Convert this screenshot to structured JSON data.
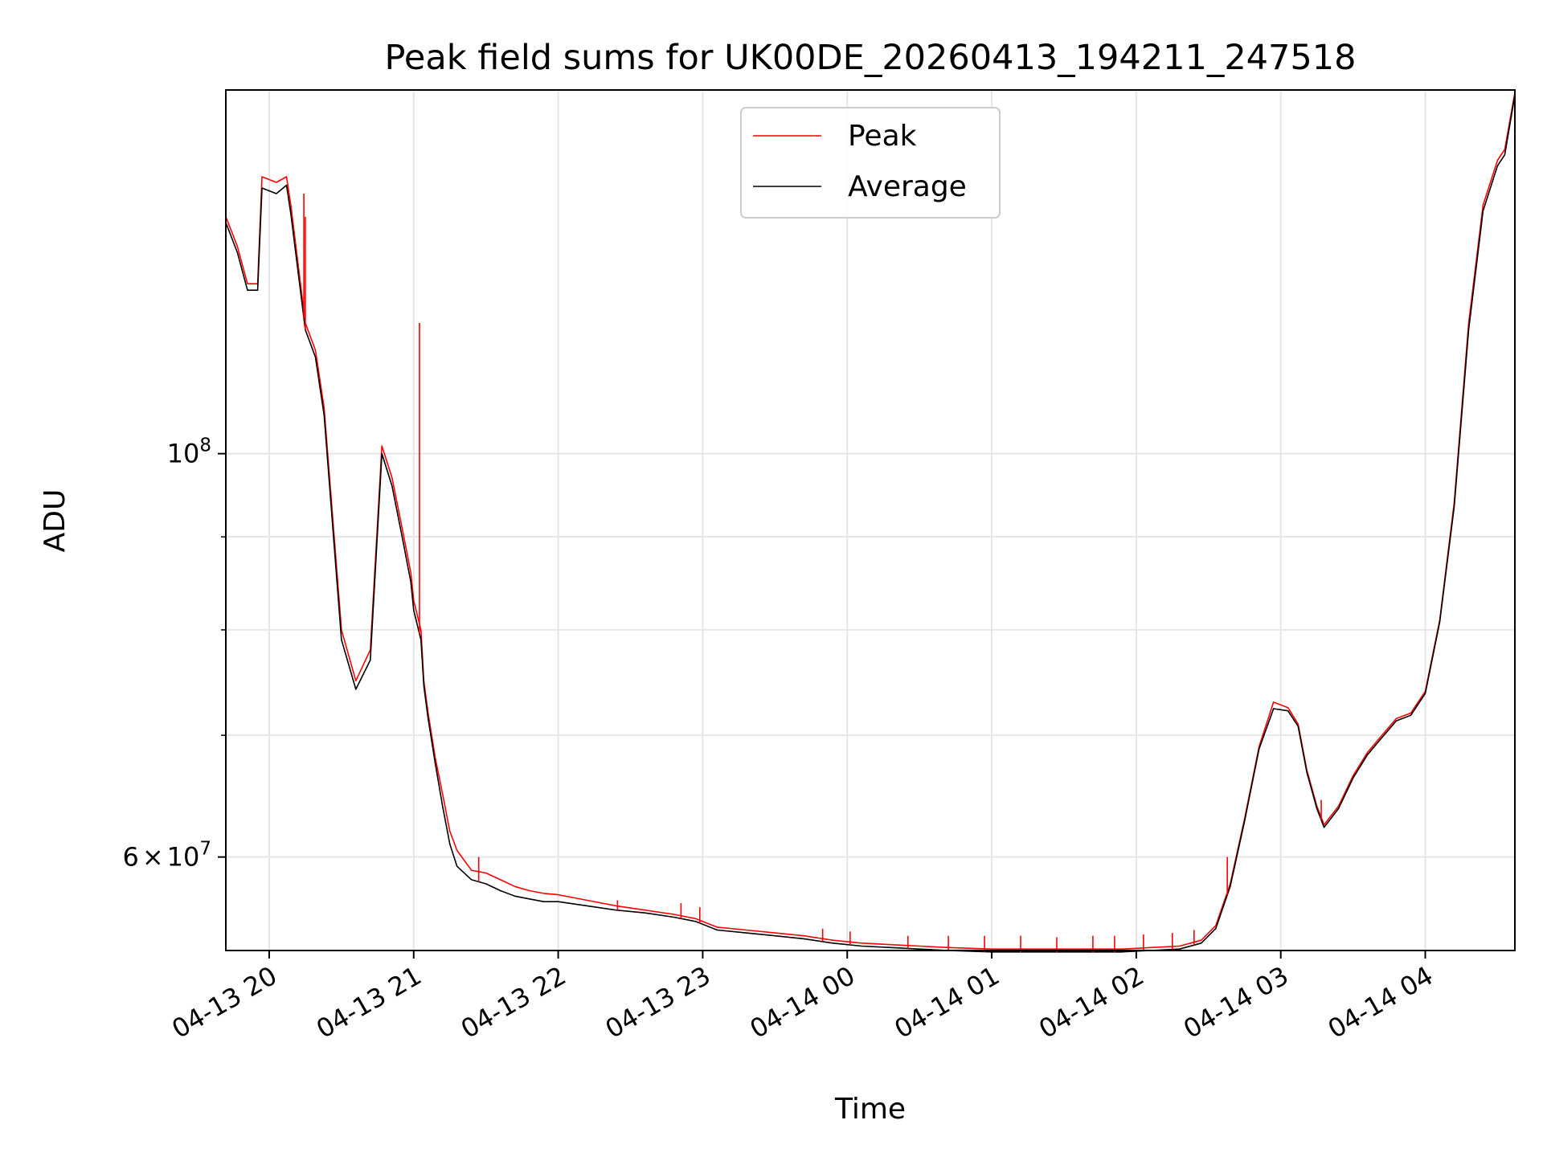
{
  "chart_data": {
    "type": "line",
    "title": "Peak field sums for UK00DE_20260413_194211_247518",
    "xlabel": "Time",
    "ylabel": "ADU",
    "yscale": "log",
    "x_unit": "hours since 2026-04-13 19:00",
    "xlim": [
      19.7,
      28.62
    ],
    "ylim": [
      53300000,
      158500000
    ],
    "grid": true,
    "legend_position": "upper center",
    "x_ticks": [
      {
        "value": 20,
        "label": "04-13 20"
      },
      {
        "value": 21,
        "label": "04-13 21"
      },
      {
        "value": 22,
        "label": "04-13 22"
      },
      {
        "value": 23,
        "label": "04-13 23"
      },
      {
        "value": 24,
        "label": "04-14 00"
      },
      {
        "value": 25,
        "label": "04-14 01"
      },
      {
        "value": 26,
        "label": "04-14 02"
      },
      {
        "value": 27,
        "label": "04-14 03"
      },
      {
        "value": 28,
        "label": "04-14 04"
      }
    ],
    "y_major_ticks": [
      {
        "value": 100000000,
        "base": "10",
        "exp": "8"
      },
      {
        "value": 60000000,
        "coef": "6",
        "times": "×",
        "base": "10",
        "exp": "7"
      }
    ],
    "y_minor_ticks": [
      70000000,
      80000000,
      90000000
    ],
    "series": [
      {
        "name": "Peak",
        "color": "#ff0000",
        "x": [
          19.7,
          19.78,
          19.85,
          19.92,
          19.95,
          20.05,
          20.12,
          20.15,
          20.25,
          20.32,
          20.38,
          20.5,
          20.6,
          20.7,
          20.78,
          20.85,
          20.92,
          20.98,
          21.0,
          21.05,
          21.07,
          21.1,
          21.15,
          21.2,
          21.25,
          21.3,
          21.4,
          21.5,
          21.6,
          21.7,
          21.8,
          21.9,
          22.0,
          22.2,
          22.4,
          22.6,
          22.8,
          22.95,
          23.1,
          23.3,
          23.5,
          23.7,
          23.9,
          24.1,
          24.3,
          24.5,
          24.7,
          25.0,
          25.3,
          25.6,
          25.9,
          26.1,
          26.3,
          26.45,
          26.55,
          26.65,
          26.75,
          26.85,
          26.95,
          27.05,
          27.12,
          27.18,
          27.25,
          27.3,
          27.4,
          27.5,
          27.6,
          27.7,
          27.8,
          27.9,
          28.0,
          28.1,
          28.2,
          28.3,
          28.4,
          28.5,
          28.55,
          28.62
        ],
        "values": [
          135000000,
          130000000,
          124000000,
          124000000,
          142000000,
          141000000,
          142000000,
          137000000,
          118000000,
          114000000,
          106000000,
          80000000,
          75000000,
          78000000,
          101000000,
          97000000,
          91000000,
          86000000,
          83000000,
          80000000,
          75000000,
          72000000,
          68000000,
          65000000,
          62000000,
          60500000,
          59000000,
          58800000,
          58300000,
          57800000,
          57500000,
          57300000,
          57200000,
          56800000,
          56400000,
          56100000,
          55800000,
          55500000,
          54900000,
          54700000,
          54500000,
          54300000,
          54000000,
          53800000,
          53700000,
          53600000,
          53500000,
          53400000,
          53400000,
          53400000,
          53400000,
          53500000,
          53600000,
          54000000,
          55000000,
          58000000,
          63000000,
          69000000,
          73000000,
          72500000,
          71000000,
          67000000,
          64000000,
          62500000,
          64000000,
          66500000,
          68500000,
          70000000,
          71500000,
          72000000,
          74000000,
          81000000,
          94000000,
          118000000,
          137000000,
          145000000,
          147000000,
          158000000
        ]
      },
      {
        "name": "Average",
        "color": "#000000",
        "x": [
          19.7,
          19.78,
          19.85,
          19.92,
          19.95,
          20.05,
          20.12,
          20.15,
          20.25,
          20.32,
          20.38,
          20.5,
          20.6,
          20.7,
          20.78,
          20.85,
          20.92,
          20.98,
          21.0,
          21.05,
          21.07,
          21.1,
          21.15,
          21.2,
          21.25,
          21.3,
          21.4,
          21.5,
          21.6,
          21.7,
          21.8,
          21.9,
          22.0,
          22.2,
          22.4,
          22.6,
          22.8,
          22.95,
          23.1,
          23.3,
          23.5,
          23.7,
          23.9,
          24.1,
          24.3,
          24.5,
          24.7,
          25.0,
          25.3,
          25.6,
          25.9,
          26.1,
          26.3,
          26.45,
          26.55,
          26.65,
          26.75,
          26.85,
          26.95,
          27.05,
          27.12,
          27.18,
          27.25,
          27.3,
          27.4,
          27.5,
          27.6,
          27.7,
          27.8,
          27.9,
          28.0,
          28.1,
          28.2,
          28.3,
          28.4,
          28.5,
          28.55,
          28.62
        ],
        "values": [
          134000000,
          129000000,
          123000000,
          123000000,
          140000000,
          139000000,
          140500000,
          135500000,
          117000000,
          113000000,
          105000000,
          79000000,
          74200000,
          77000000,
          100000000,
          96000000,
          90000000,
          85000000,
          82000000,
          79000000,
          74500000,
          71500000,
          67500000,
          64000000,
          61000000,
          59300000,
          58300000,
          58000000,
          57500000,
          57100000,
          56900000,
          56700000,
          56700000,
          56400000,
          56100000,
          55900000,
          55600000,
          55300000,
          54700000,
          54500000,
          54300000,
          54100000,
          53800000,
          53600000,
          53500000,
          53400000,
          53300000,
          53200000,
          53200000,
          53200000,
          53200000,
          53300000,
          53400000,
          53800000,
          54800000,
          57800000,
          62800000,
          68800000,
          72400000,
          72200000,
          70800000,
          66800000,
          63800000,
          62300000,
          63800000,
          66300000,
          68300000,
          69800000,
          71300000,
          71800000,
          73800000,
          80800000,
          93500000,
          117000000,
          136000000,
          144000000,
          146000000,
          157500000
        ]
      }
    ],
    "spikes": [
      {
        "x": 20.24,
        "value": 139000000
      },
      {
        "x": 20.25,
        "value": 135000000
      },
      {
        "x": 21.04,
        "value": 118000000
      },
      {
        "x": 21.45,
        "value": 60000000
      },
      {
        "x": 22.41,
        "value": 56800000
      },
      {
        "x": 22.85,
        "value": 56600000
      },
      {
        "x": 22.98,
        "value": 56300000
      },
      {
        "x": 23.83,
        "value": 54800000
      },
      {
        "x": 24.02,
        "value": 54600000
      },
      {
        "x": 24.42,
        "value": 54300000
      },
      {
        "x": 24.7,
        "value": 54300000
      },
      {
        "x": 24.95,
        "value": 54300000
      },
      {
        "x": 25.2,
        "value": 54300000
      },
      {
        "x": 25.45,
        "value": 54200000
      },
      {
        "x": 25.7,
        "value": 54300000
      },
      {
        "x": 25.85,
        "value": 54300000
      },
      {
        "x": 26.05,
        "value": 54400000
      },
      {
        "x": 26.25,
        "value": 54500000
      },
      {
        "x": 26.4,
        "value": 54700000
      },
      {
        "x": 26.63,
        "value": 60000000
      },
      {
        "x": 27.28,
        "value": 64500000
      }
    ]
  }
}
